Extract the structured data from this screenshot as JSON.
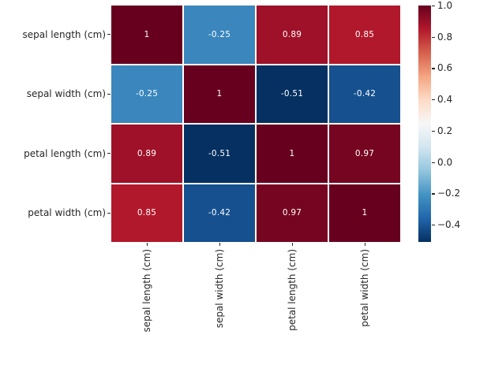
{
  "chart_data": {
    "type": "heatmap",
    "title": "",
    "x_categories": [
      "sepal length (cm)",
      "sepal width (cm)",
      "petal length (cm)",
      "petal width (cm)"
    ],
    "y_categories": [
      "sepal length (cm)",
      "sepal width (cm)",
      "petal length (cm)",
      "petal width (cm)"
    ],
    "matrix": [
      [
        1.0,
        -0.25,
        0.89,
        0.85
      ],
      [
        -0.25,
        1.0,
        -0.51,
        -0.42
      ],
      [
        0.89,
        -0.51,
        1.0,
        0.97
      ],
      [
        0.85,
        -0.42,
        0.97,
        1.0
      ]
    ],
    "cell_labels": [
      [
        "1",
        "-0.25",
        "0.89",
        "0.85"
      ],
      [
        "-0.25",
        "1",
        "-0.51",
        "-0.42"
      ],
      [
        "0.89",
        "-0.51",
        "1",
        "0.97"
      ],
      [
        "0.85",
        "-0.42",
        "0.97",
        "1"
      ]
    ],
    "colormap": {
      "name": "RdBu_r",
      "vmin": -0.51,
      "vmax": 1.0,
      "anchors": [
        "#053061",
        "#2166ac",
        "#4393c3",
        "#92c5de",
        "#d1e5f0",
        "#f7f7f7",
        "#fddbc7",
        "#f4a582",
        "#d6604d",
        "#b2182b",
        "#67001f"
      ]
    },
    "colorbar": {
      "tick_values": [
        1.0,
        0.8,
        0.6,
        0.4,
        0.2,
        0.0,
        -0.2,
        -0.4
      ],
      "tick_labels": [
        "1.0",
        "0.8",
        "0.6",
        "0.4",
        "0.2",
        "0.0",
        "−0.2",
        "−0.4"
      ]
    },
    "legend_position": "right",
    "grid_on": false,
    "annotation_text_color": "#ffffff",
    "axis_text_color": "#262626",
    "background_color": "#ffffff"
  }
}
